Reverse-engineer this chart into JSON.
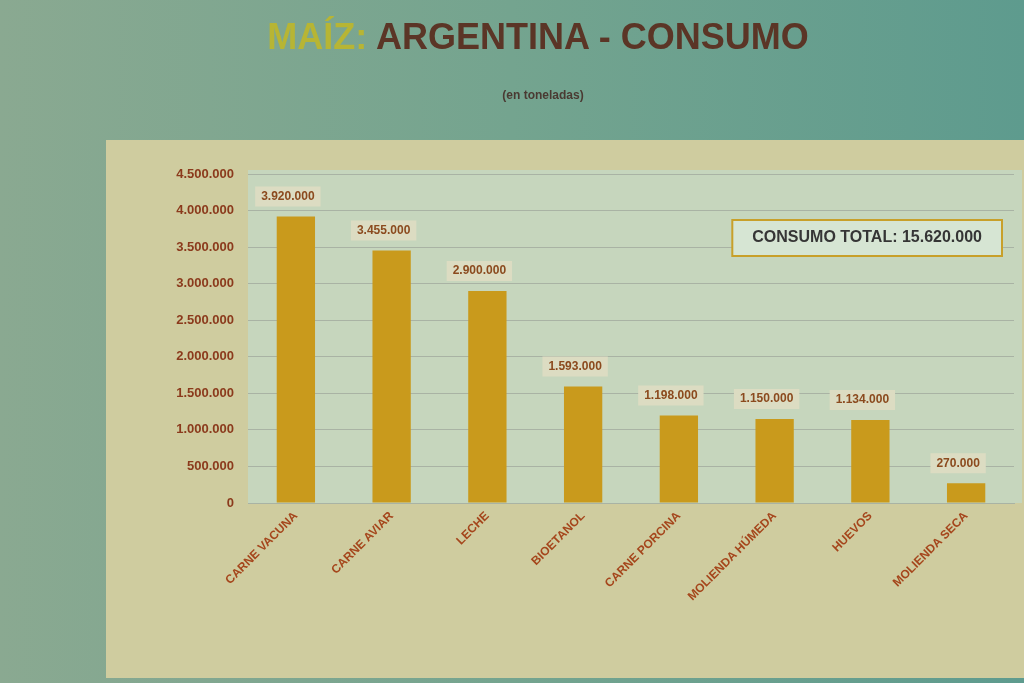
{
  "chart_data": {
    "type": "bar",
    "title": "MAÍZ: ARGENTINA - CONSUMO",
    "subtitle": "(en toneladas)",
    "categories": [
      "CARNE VACUNA",
      "CARNE AVIAR",
      "LECHE",
      "BIOETANOL",
      "CARNE PORCINA",
      "MOLIENDA HÚMEDA",
      "HUEVOS",
      "MOLIENDA SECA"
    ],
    "values": [
      3920000,
      3455000,
      2900000,
      1593000,
      1198000,
      1150000,
      1134000,
      270000
    ],
    "value_labels": [
      "3.920.000",
      "3.455.000",
      "2.900.000",
      "1.593.000",
      "1.198.000",
      "1.150.000",
      "1.134.000",
      "270.000"
    ],
    "color": "#c99a1c",
    "ylim": [
      0,
      4500000
    ],
    "yticks": [
      0,
      {
        "value": 500000,
        "label": "500.000"
      },
      {
        "value": 1000000,
        "label": "1.000.000"
      },
      {
        "value": 1500000,
        "label": "1.500.000"
      },
      {
        "value": 2000000,
        "label": "2.000.000"
      },
      {
        "value": 2500000,
        "label": "2.500.000"
      },
      {
        "value": 3000000,
        "label": "3.000.000"
      },
      {
        "value": 3500000,
        "label": "3.500.000"
      },
      {
        "value": 4000000,
        "label": "4.000.000"
      },
      {
        "value": 4500000,
        "label": "4.500.000"
      }
    ],
    "grid": "y",
    "annotations": [
      "CONSUMO TOTAL: 15.620.000"
    ]
  }
}
